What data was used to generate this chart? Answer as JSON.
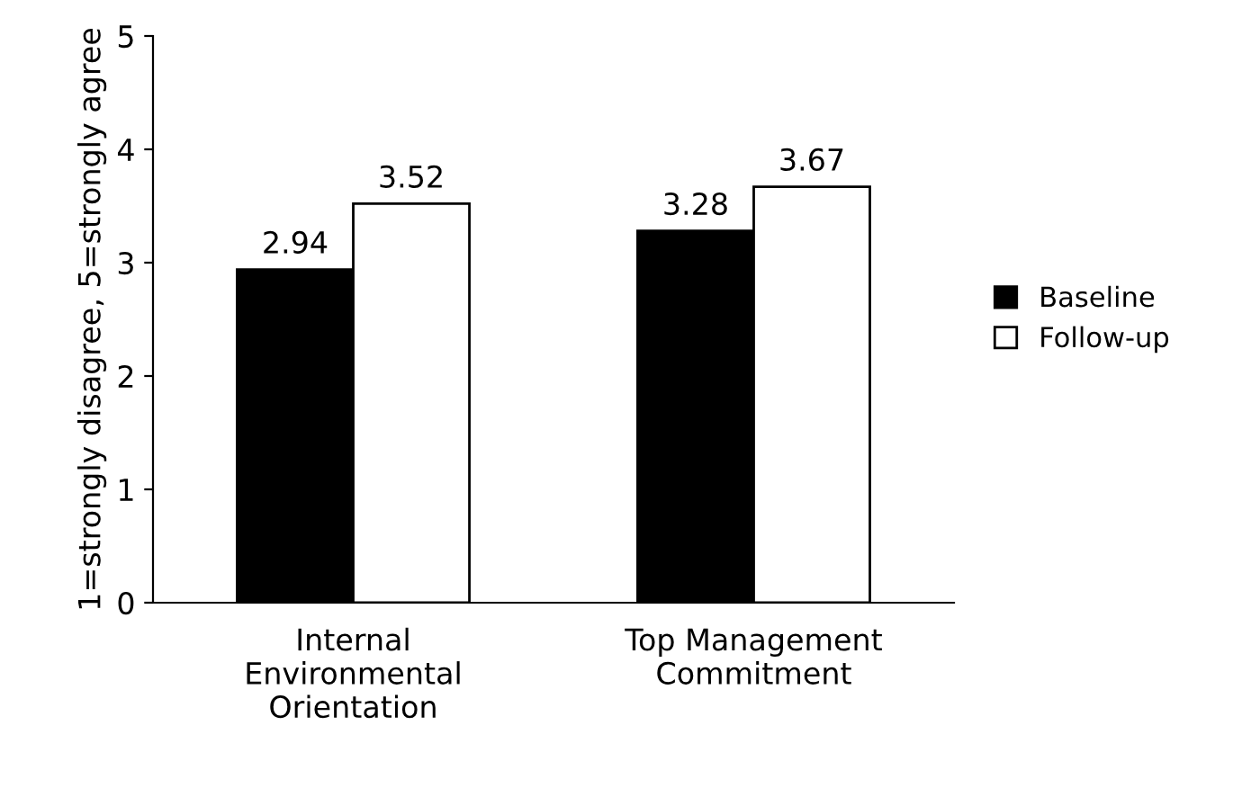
{
  "chart_data": {
    "type": "bar",
    "ylabel": "1=strongly disagree, 5=strongly agree",
    "categories": [
      "Internal\nEnvironmental\nOrientation",
      "Top Management\nCommitment"
    ],
    "series": [
      {
        "name": "Baseline",
        "color": "#000000",
        "values": [
          2.94,
          3.28
        ]
      },
      {
        "name": "Follow-up",
        "color": "#ffffff",
        "values": [
          3.52,
          3.67
        ]
      }
    ],
    "ylim": [
      0,
      5
    ],
    "yticks": [
      0,
      1,
      2,
      3,
      4,
      5
    ],
    "grid": false,
    "legend": "right",
    "data_labels": true
  }
}
